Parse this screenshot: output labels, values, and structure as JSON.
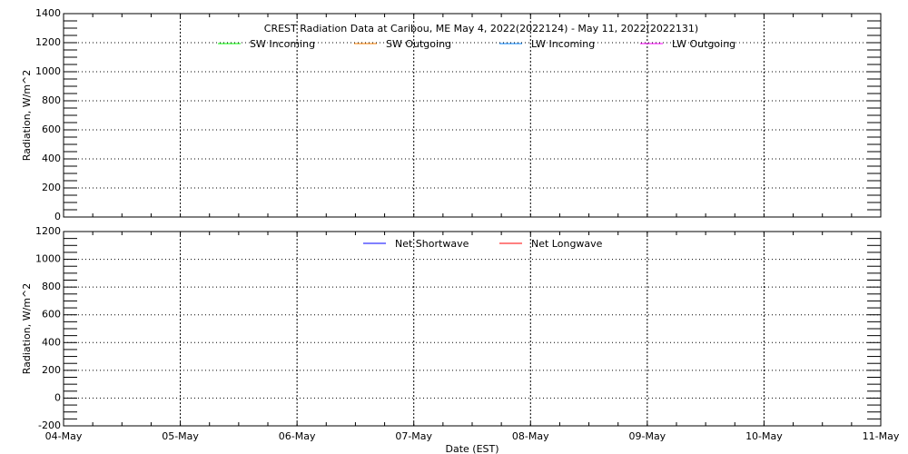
{
  "chart_data": [
    {
      "type": "line",
      "title": "CREST Radiation Data at Caribou, ME   May  4, 2022(2022124) - May 11, 2022(2022131)",
      "ylabel": "Radiation, W/m^2",
      "xlabel": "",
      "ylim": [
        0,
        1400
      ],
      "yticks": [
        "0",
        "200",
        "400",
        "600",
        "800",
        "1000",
        "1200",
        "1400"
      ],
      "xticks": [
        "04-May",
        "05-May",
        "06-May",
        "07-May",
        "08-May",
        "09-May",
        "10-May",
        "11-May"
      ],
      "grid": true,
      "legend": "top-center",
      "series": [
        {
          "name": "SW Incoming",
          "color": "#00ff00",
          "values": []
        },
        {
          "name": "SW Outgoing",
          "color": "#ff8000",
          "values": []
        },
        {
          "name": "LW Incoming",
          "color": "#0080ff",
          "values": []
        },
        {
          "name": "LW Outgoing",
          "color": "#ff00ff",
          "values": []
        }
      ]
    },
    {
      "type": "line",
      "title": "",
      "ylabel": "Radiation, W/m^2",
      "xlabel": "Date (EST)",
      "ylim": [
        -200,
        1200
      ],
      "yticks": [
        "-200",
        "0",
        "200",
        "400",
        "600",
        "800",
        "1000",
        "1200"
      ],
      "xticks": [
        "04-May",
        "05-May",
        "06-May",
        "07-May",
        "08-May",
        "09-May",
        "10-May",
        "11-May"
      ],
      "grid": true,
      "legend": "top-center",
      "series": [
        {
          "name": "Net Shortwave",
          "color": "#0000ff",
          "values": []
        },
        {
          "name": "Net Longwave",
          "color": "#ff0000",
          "values": []
        }
      ]
    }
  ]
}
